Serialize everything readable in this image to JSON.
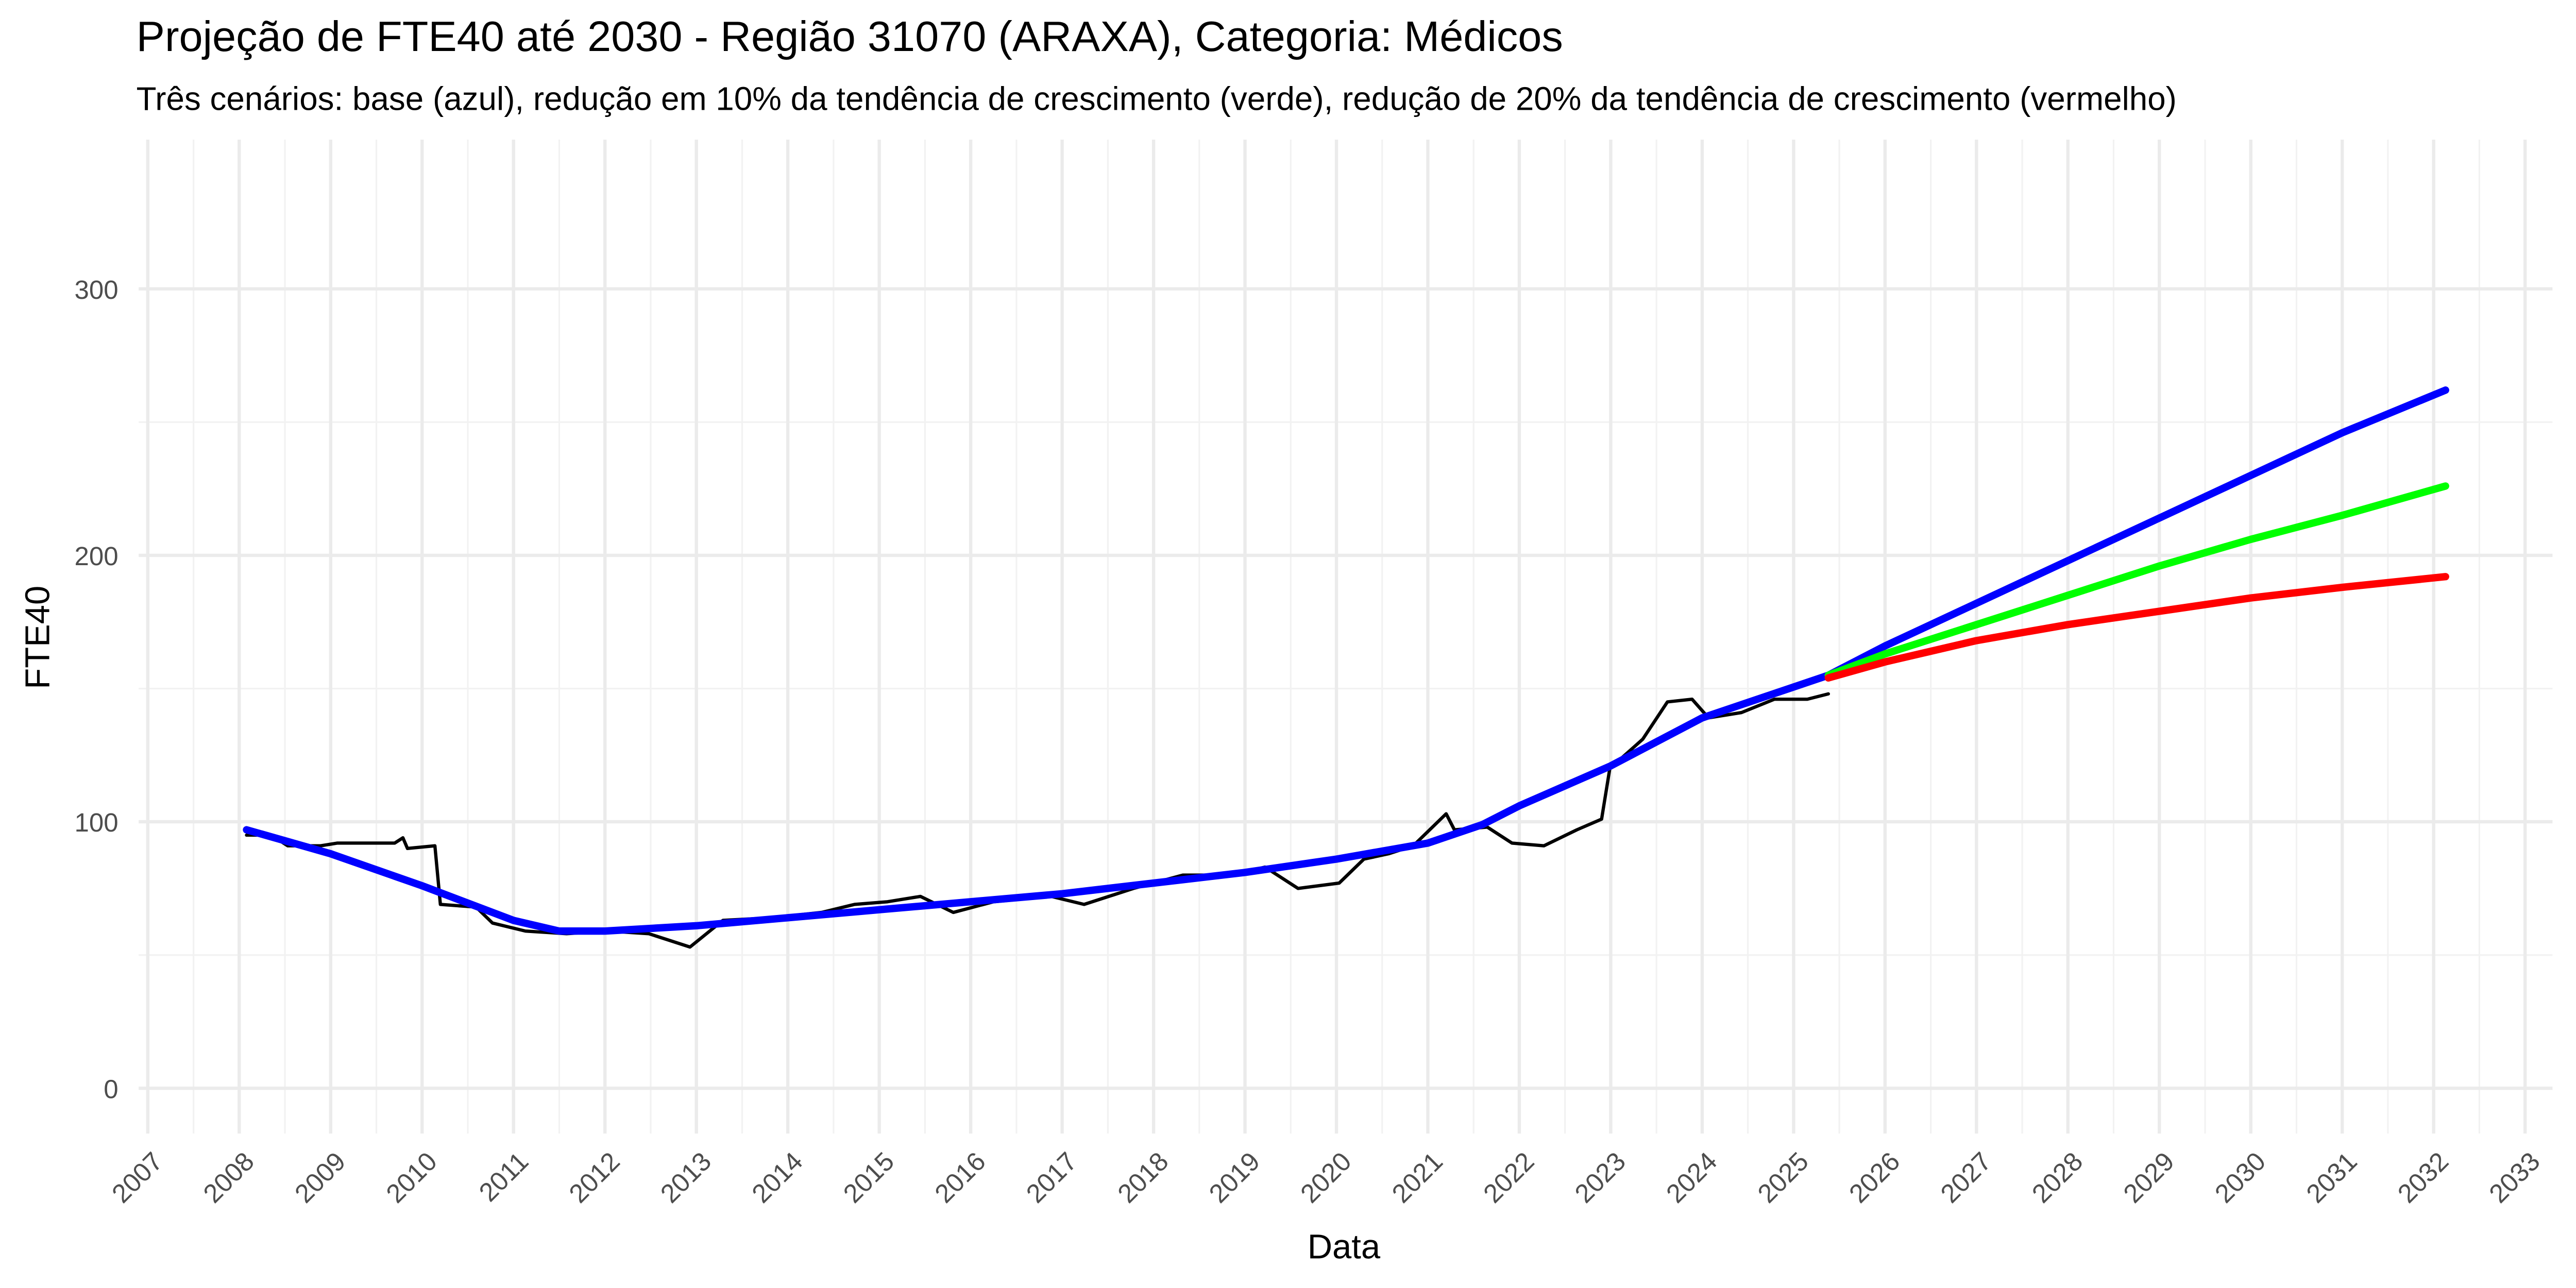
{
  "chart_data": {
    "type": "line",
    "title": "Projeção de FTE40 até 2030 - Região 31070 (ARAXA), Categoria: Médicos",
    "subtitle": "Três cenários: base (azul), redução em 10% da tendência de crescimento (verde), redução de 20% da tendência de crescimento (vermelho)",
    "x_label": "Data",
    "y_label": "FTE40",
    "xlim": [
      2006.9,
      2033.3
    ],
    "ylim": [
      -17,
      356
    ],
    "xticks": [
      2007,
      2008,
      2009,
      2010,
      2011,
      2012,
      2013,
      2014,
      2015,
      2016,
      2017,
      2018,
      2019,
      2020,
      2021,
      2022,
      2023,
      2024,
      2025,
      2026,
      2027,
      2028,
      2029,
      2030,
      2031,
      2032,
      2033
    ],
    "yticks": [
      0,
      100,
      200,
      300
    ],
    "grid": true,
    "series": [
      {
        "color": "#000000",
        "line_width": 2,
        "x": [
          2008.08,
          2008.35,
          2008.53,
          2008.89,
          2009.07,
          2009.7,
          2009.79,
          2009.84,
          2010.14,
          2010.2,
          2010.59,
          2010.77,
          2011.13,
          2011.58,
          2012.03,
          2012.48,
          2012.93,
          2013.29,
          2013.83,
          2014.37,
          2014.73,
          2015.09,
          2015.45,
          2015.81,
          2016.25,
          2016.88,
          2017.24,
          2017.78,
          2018.32,
          2018.86,
          2019.22,
          2019.58,
          2020.03,
          2020.3,
          2020.57,
          2020.84,
          2021.2,
          2021.29,
          2021.65,
          2021.92,
          2022.27,
          2022.63,
          2022.9,
          2022.99,
          2023.35,
          2023.62,
          2023.89,
          2024.07,
          2024.43,
          2024.79,
          2025.15,
          2025.38
        ],
        "values": [
          95,
          95,
          91,
          91,
          92,
          92,
          94,
          90,
          91,
          69,
          68,
          62,
          59,
          58,
          59,
          58,
          53,
          63,
          64,
          66,
          69,
          70,
          72,
          66,
          70,
          72,
          69,
          75,
          80,
          80,
          83,
          75,
          77,
          86,
          88,
          91,
          103,
          97,
          98,
          92,
          91,
          97,
          101,
          120,
          131,
          145,
          146,
          139,
          141,
          146,
          146,
          148
        ]
      },
      {
        "color": "#0000ff",
        "line_width": 4.5,
        "x": [
          2008.08,
          2009,
          2010,
          2011,
          2011.5,
          2012,
          2013,
          2014,
          2015,
          2016,
          2017,
          2018,
          2019,
          2020,
          2021,
          2021.6,
          2022,
          2023,
          2024,
          2025.38,
          2026,
          2027,
          2028,
          2029,
          2030,
          2031,
          2032.13
        ],
        "values": [
          97,
          88,
          76,
          63,
          59,
          59,
          61,
          64,
          67,
          70,
          73,
          77,
          81,
          86,
          92,
          99,
          106,
          121,
          139,
          155,
          166,
          182,
          198,
          214,
          230,
          246,
          262
        ]
      },
      {
        "color": "#00ff00",
        "line_width": 4.5,
        "x": [
          2025.38,
          2026,
          2027,
          2028,
          2029,
          2030,
          2031,
          2032.13
        ],
        "values": [
          155,
          163,
          174,
          185,
          196,
          206,
          215,
          226
        ]
      },
      {
        "color": "#ff0000",
        "line_width": 4.5,
        "x": [
          2025.38,
          2026,
          2027,
          2028,
          2029,
          2030,
          2031,
          2032.13
        ],
        "values": [
          154,
          160,
          168,
          174,
          179,
          184,
          188,
          192
        ]
      }
    ]
  }
}
